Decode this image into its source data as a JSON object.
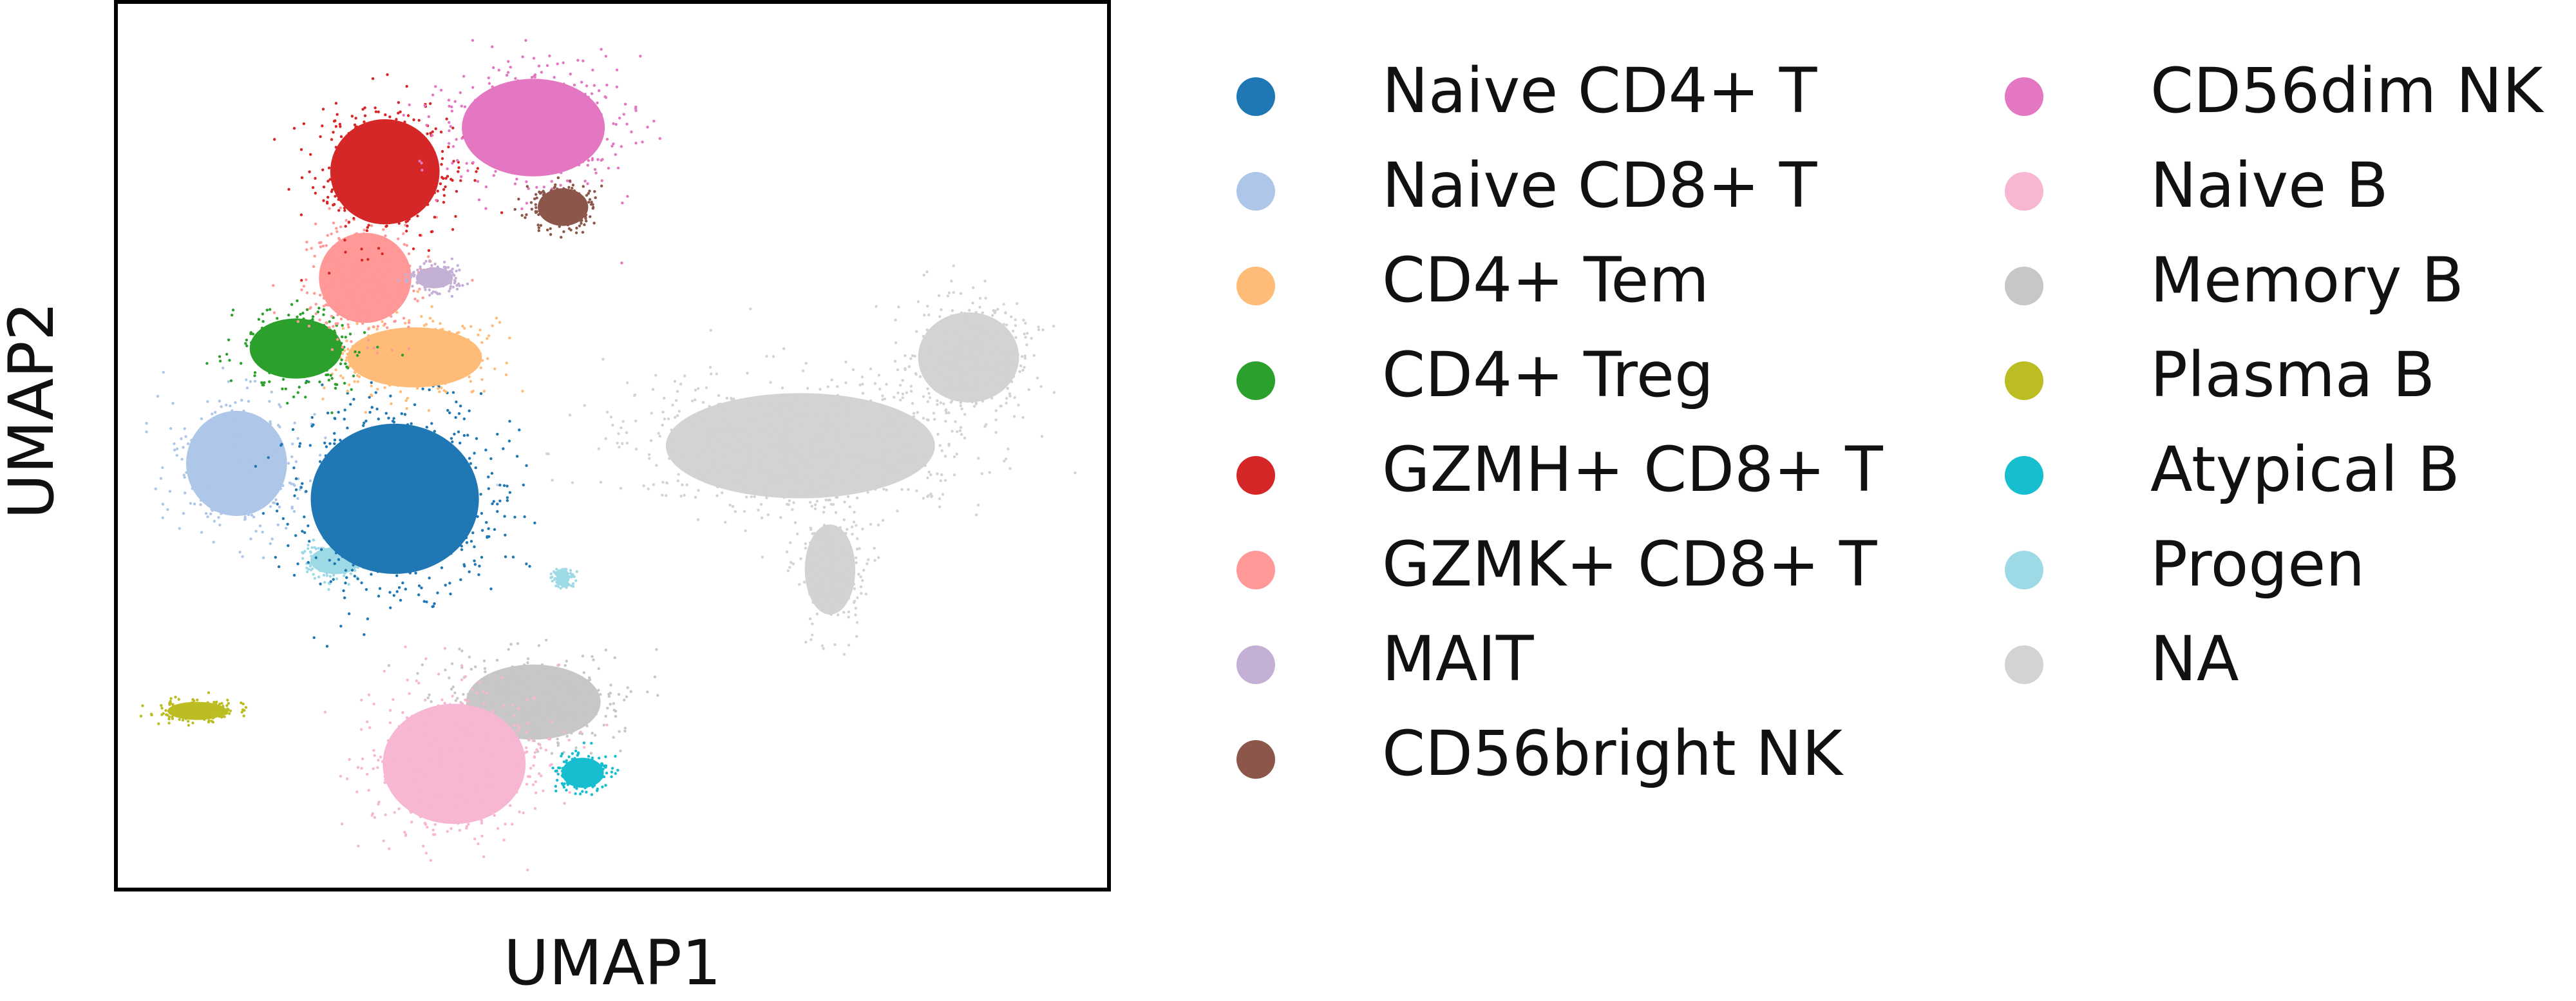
{
  "chart_data": {
    "type": "scatter",
    "title": "",
    "xlabel": "UMAP1",
    "ylabel": "UMAP2",
    "grid": false,
    "legend_placement": "right, two columns",
    "series": [
      {
        "name": "Naive CD4+ T",
        "color": "#1f77b4",
        "clusters": [
          {
            "x": 0.28,
            "y": 0.44,
            "rx": 0.1,
            "ry": 0.1
          }
        ]
      },
      {
        "name": "Naive CD8+ T",
        "color": "#aec7e8",
        "clusters": [
          {
            "x": 0.12,
            "y": 0.48,
            "rx": 0.06,
            "ry": 0.07
          }
        ]
      },
      {
        "name": "CD4+ Tem",
        "color": "#ffbb78",
        "clusters": [
          {
            "x": 0.3,
            "y": 0.6,
            "rx": 0.08,
            "ry": 0.04
          }
        ]
      },
      {
        "name": "CD4+ Treg",
        "color": "#2ca02c",
        "clusters": [
          {
            "x": 0.18,
            "y": 0.61,
            "rx": 0.055,
            "ry": 0.04
          }
        ]
      },
      {
        "name": "GZMH+ CD8+ T",
        "color": "#d62728",
        "clusters": [
          {
            "x": 0.27,
            "y": 0.81,
            "rx": 0.065,
            "ry": 0.07
          }
        ]
      },
      {
        "name": "GZMK+ CD8+ T",
        "color": "#ff9896",
        "clusters": [
          {
            "x": 0.25,
            "y": 0.69,
            "rx": 0.055,
            "ry": 0.06
          }
        ]
      },
      {
        "name": "MAIT",
        "color": "#c5b0d5",
        "clusters": [
          {
            "x": 0.32,
            "y": 0.69,
            "rx": 0.022,
            "ry": 0.014
          }
        ]
      },
      {
        "name": "CD56bright NK",
        "color": "#8c564b",
        "clusters": [
          {
            "x": 0.45,
            "y": 0.77,
            "rx": 0.03,
            "ry": 0.025
          }
        ]
      },
      {
        "name": "CD56dim NK",
        "color": "#e377c2",
        "clusters": [
          {
            "x": 0.42,
            "y": 0.86,
            "rx": 0.085,
            "ry": 0.065
          }
        ]
      },
      {
        "name": "Naive B",
        "color": "#f7b6d2",
        "clusters": [
          {
            "x": 0.34,
            "y": 0.14,
            "rx": 0.085,
            "ry": 0.08
          }
        ]
      },
      {
        "name": "Memory B",
        "color": "#c7c7c7",
        "clusters": [
          {
            "x": 0.42,
            "y": 0.21,
            "rx": 0.08,
            "ry": 0.05
          }
        ]
      },
      {
        "name": "Plasma B",
        "color": "#bcbd22",
        "clusters": [
          {
            "x": 0.08,
            "y": 0.2,
            "rx": 0.035,
            "ry": 0.012
          }
        ]
      },
      {
        "name": "Atypical B",
        "color": "#17becf",
        "clusters": [
          {
            "x": 0.47,
            "y": 0.13,
            "rx": 0.025,
            "ry": 0.02
          }
        ]
      },
      {
        "name": "Progen",
        "color": "#9edae5",
        "clusters": [
          {
            "x": 0.22,
            "y": 0.37,
            "rx": 0.03,
            "ry": 0.018
          },
          {
            "x": 0.45,
            "y": 0.35,
            "rx": 0.008,
            "ry": 0.008
          }
        ]
      },
      {
        "name": "NA",
        "color": "#d3d3d3",
        "clusters": [
          {
            "x": 0.69,
            "y": 0.5,
            "rx": 0.16,
            "ry": 0.07
          },
          {
            "x": 0.86,
            "y": 0.6,
            "rx": 0.06,
            "ry": 0.06
          },
          {
            "x": 0.72,
            "y": 0.36,
            "rx": 0.03,
            "ry": 0.06
          }
        ]
      }
    ]
  }
}
